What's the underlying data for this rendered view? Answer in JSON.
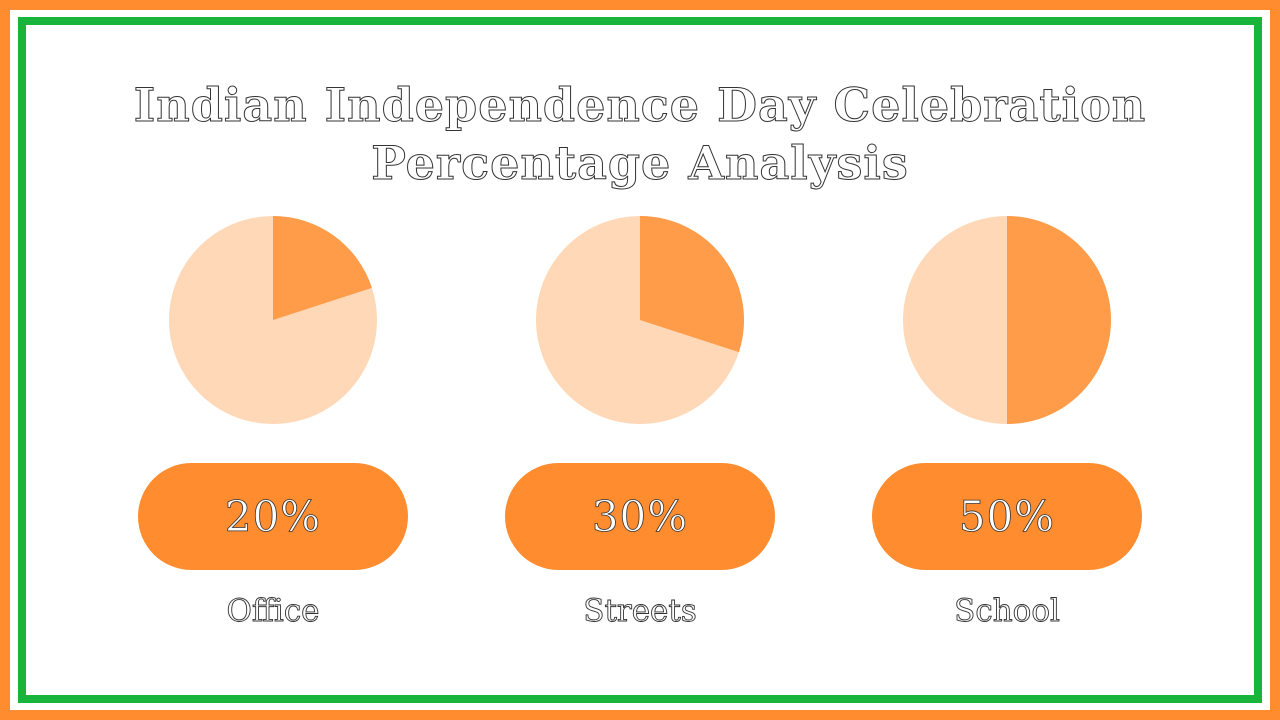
{
  "colors": {
    "frame_orange": "#ff8c2e",
    "frame_green": "#19b43c",
    "slice_highlight": "#ff9c4a",
    "slice_rest": "#ffd8b8",
    "pill": "#ff8c2e"
  },
  "chart_data": {
    "type": "pie",
    "title": "Indian Independence Day Celebration Percentage Analysis",
    "title_lines": [
      "Indian Independence Day Celebration",
      "Percentage Analysis"
    ],
    "pies": [
      {
        "category": "Office",
        "value": 20,
        "label": "20%"
      },
      {
        "category": "Streets",
        "value": 30,
        "label": "30%"
      },
      {
        "category": "School",
        "value": 50,
        "label": "50%"
      }
    ]
  }
}
